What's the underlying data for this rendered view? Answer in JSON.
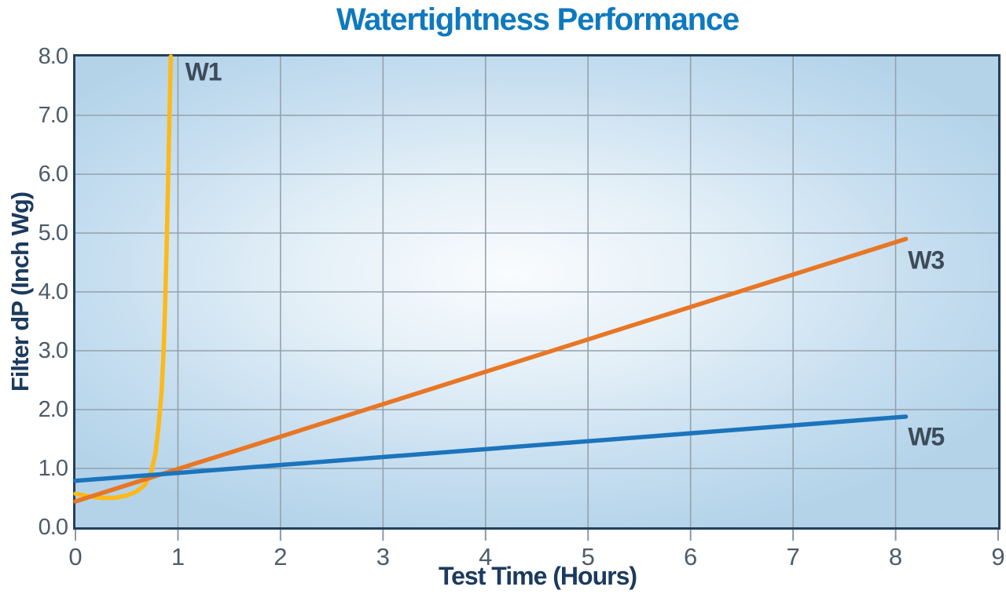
{
  "page": {
    "title": "Watertightness Performance"
  },
  "chart_data": {
    "type": "line",
    "title": "Watertightness Performance",
    "xlabel": "Test Time (Hours)",
    "ylabel": "Filter dP (Inch Wg)",
    "xlim": [
      0,
      9
    ],
    "ylim": [
      0,
      8
    ],
    "grid": true,
    "legend_position": "inline-labels",
    "x_ticks": [
      0,
      1,
      2,
      3,
      4,
      5,
      6,
      7,
      8,
      9
    ],
    "x_tick_labels": [
      "0",
      "1",
      "2",
      "3",
      "4",
      "5",
      "6",
      "7",
      "8",
      "9"
    ],
    "y_ticks": [
      0,
      1,
      2,
      3,
      4,
      5,
      6,
      7,
      8
    ],
    "y_tick_labels": [
      "0.0",
      "1.0",
      "2.0",
      "3.0",
      "4.0",
      "5.0",
      "6.0",
      "7.0",
      "8.0"
    ],
    "series": [
      {
        "name": "W1",
        "color": "#FDB918",
        "label_pos": [
          1.07,
          7.73
        ],
        "points": [
          [
            0,
            0.57
          ],
          [
            0.12,
            0.53
          ],
          [
            0.25,
            0.5
          ],
          [
            0.38,
            0.5
          ],
          [
            0.5,
            0.54
          ],
          [
            0.6,
            0.61
          ],
          [
            0.68,
            0.73
          ],
          [
            0.74,
            0.95
          ],
          [
            0.78,
            1.25
          ],
          [
            0.81,
            1.7
          ],
          [
            0.84,
            2.3
          ],
          [
            0.86,
            3.0
          ],
          [
            0.875,
            3.8
          ],
          [
            0.89,
            4.8
          ],
          [
            0.9,
            5.6
          ],
          [
            0.915,
            6.8
          ],
          [
            0.93,
            8.0
          ]
        ]
      },
      {
        "name": "W3",
        "color": "#E87624",
        "label_pos": [
          8.12,
          4.53
        ],
        "points": [
          [
            0,
            0.44
          ],
          [
            8.1,
            4.9
          ]
        ]
      },
      {
        "name": "W5",
        "color": "#1B74BC",
        "label_pos": [
          8.12,
          1.53
        ],
        "points": [
          [
            0,
            0.79
          ],
          [
            8.1,
            1.88
          ]
        ]
      }
    ],
    "colors": {
      "title": "#0E79BE",
      "axis_title": "#1B3A5E",
      "tick_label": "#4D5C6A",
      "series_label": "#3D4C5A",
      "plot_border": "#24405C",
      "gridline": "#94A1AC",
      "tick_mark": "#8A99A6",
      "plot_bg_center": "#FAFCFE",
      "plot_bg_edge": "#B4D3E9"
    }
  }
}
